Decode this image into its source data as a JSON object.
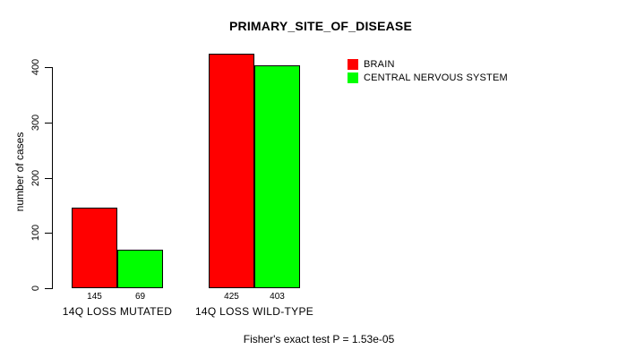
{
  "chart_data": {
    "type": "bar",
    "title": "PRIMARY_SITE_OF_DISEASE",
    "ylabel": "number of cases",
    "xlabel": "",
    "categories": [
      "14Q LOSS MUTATED",
      "14Q LOSS WILD-TYPE"
    ],
    "series": [
      {
        "name": "BRAIN",
        "color": "#FF0000",
        "values": [
          145,
          425
        ]
      },
      {
        "name": "CENTRAL NERVOUS SYSTEM",
        "color": "#00FF00",
        "values": [
          69,
          403
        ]
      }
    ],
    "yticks": [
      0,
      100,
      200,
      300,
      400
    ],
    "ylim": [
      0,
      425
    ],
    "grid": false,
    "legend_position": "top-right",
    "bar_value_labels": [
      [
        145,
        69
      ],
      [
        425,
        403
      ]
    ],
    "annotation": "Fisher's exact test P = 1.53e-05"
  },
  "colors": {
    "background": "#FFFFFF",
    "axis": "#000000",
    "text": "#000000",
    "bar_border": "#000000"
  }
}
